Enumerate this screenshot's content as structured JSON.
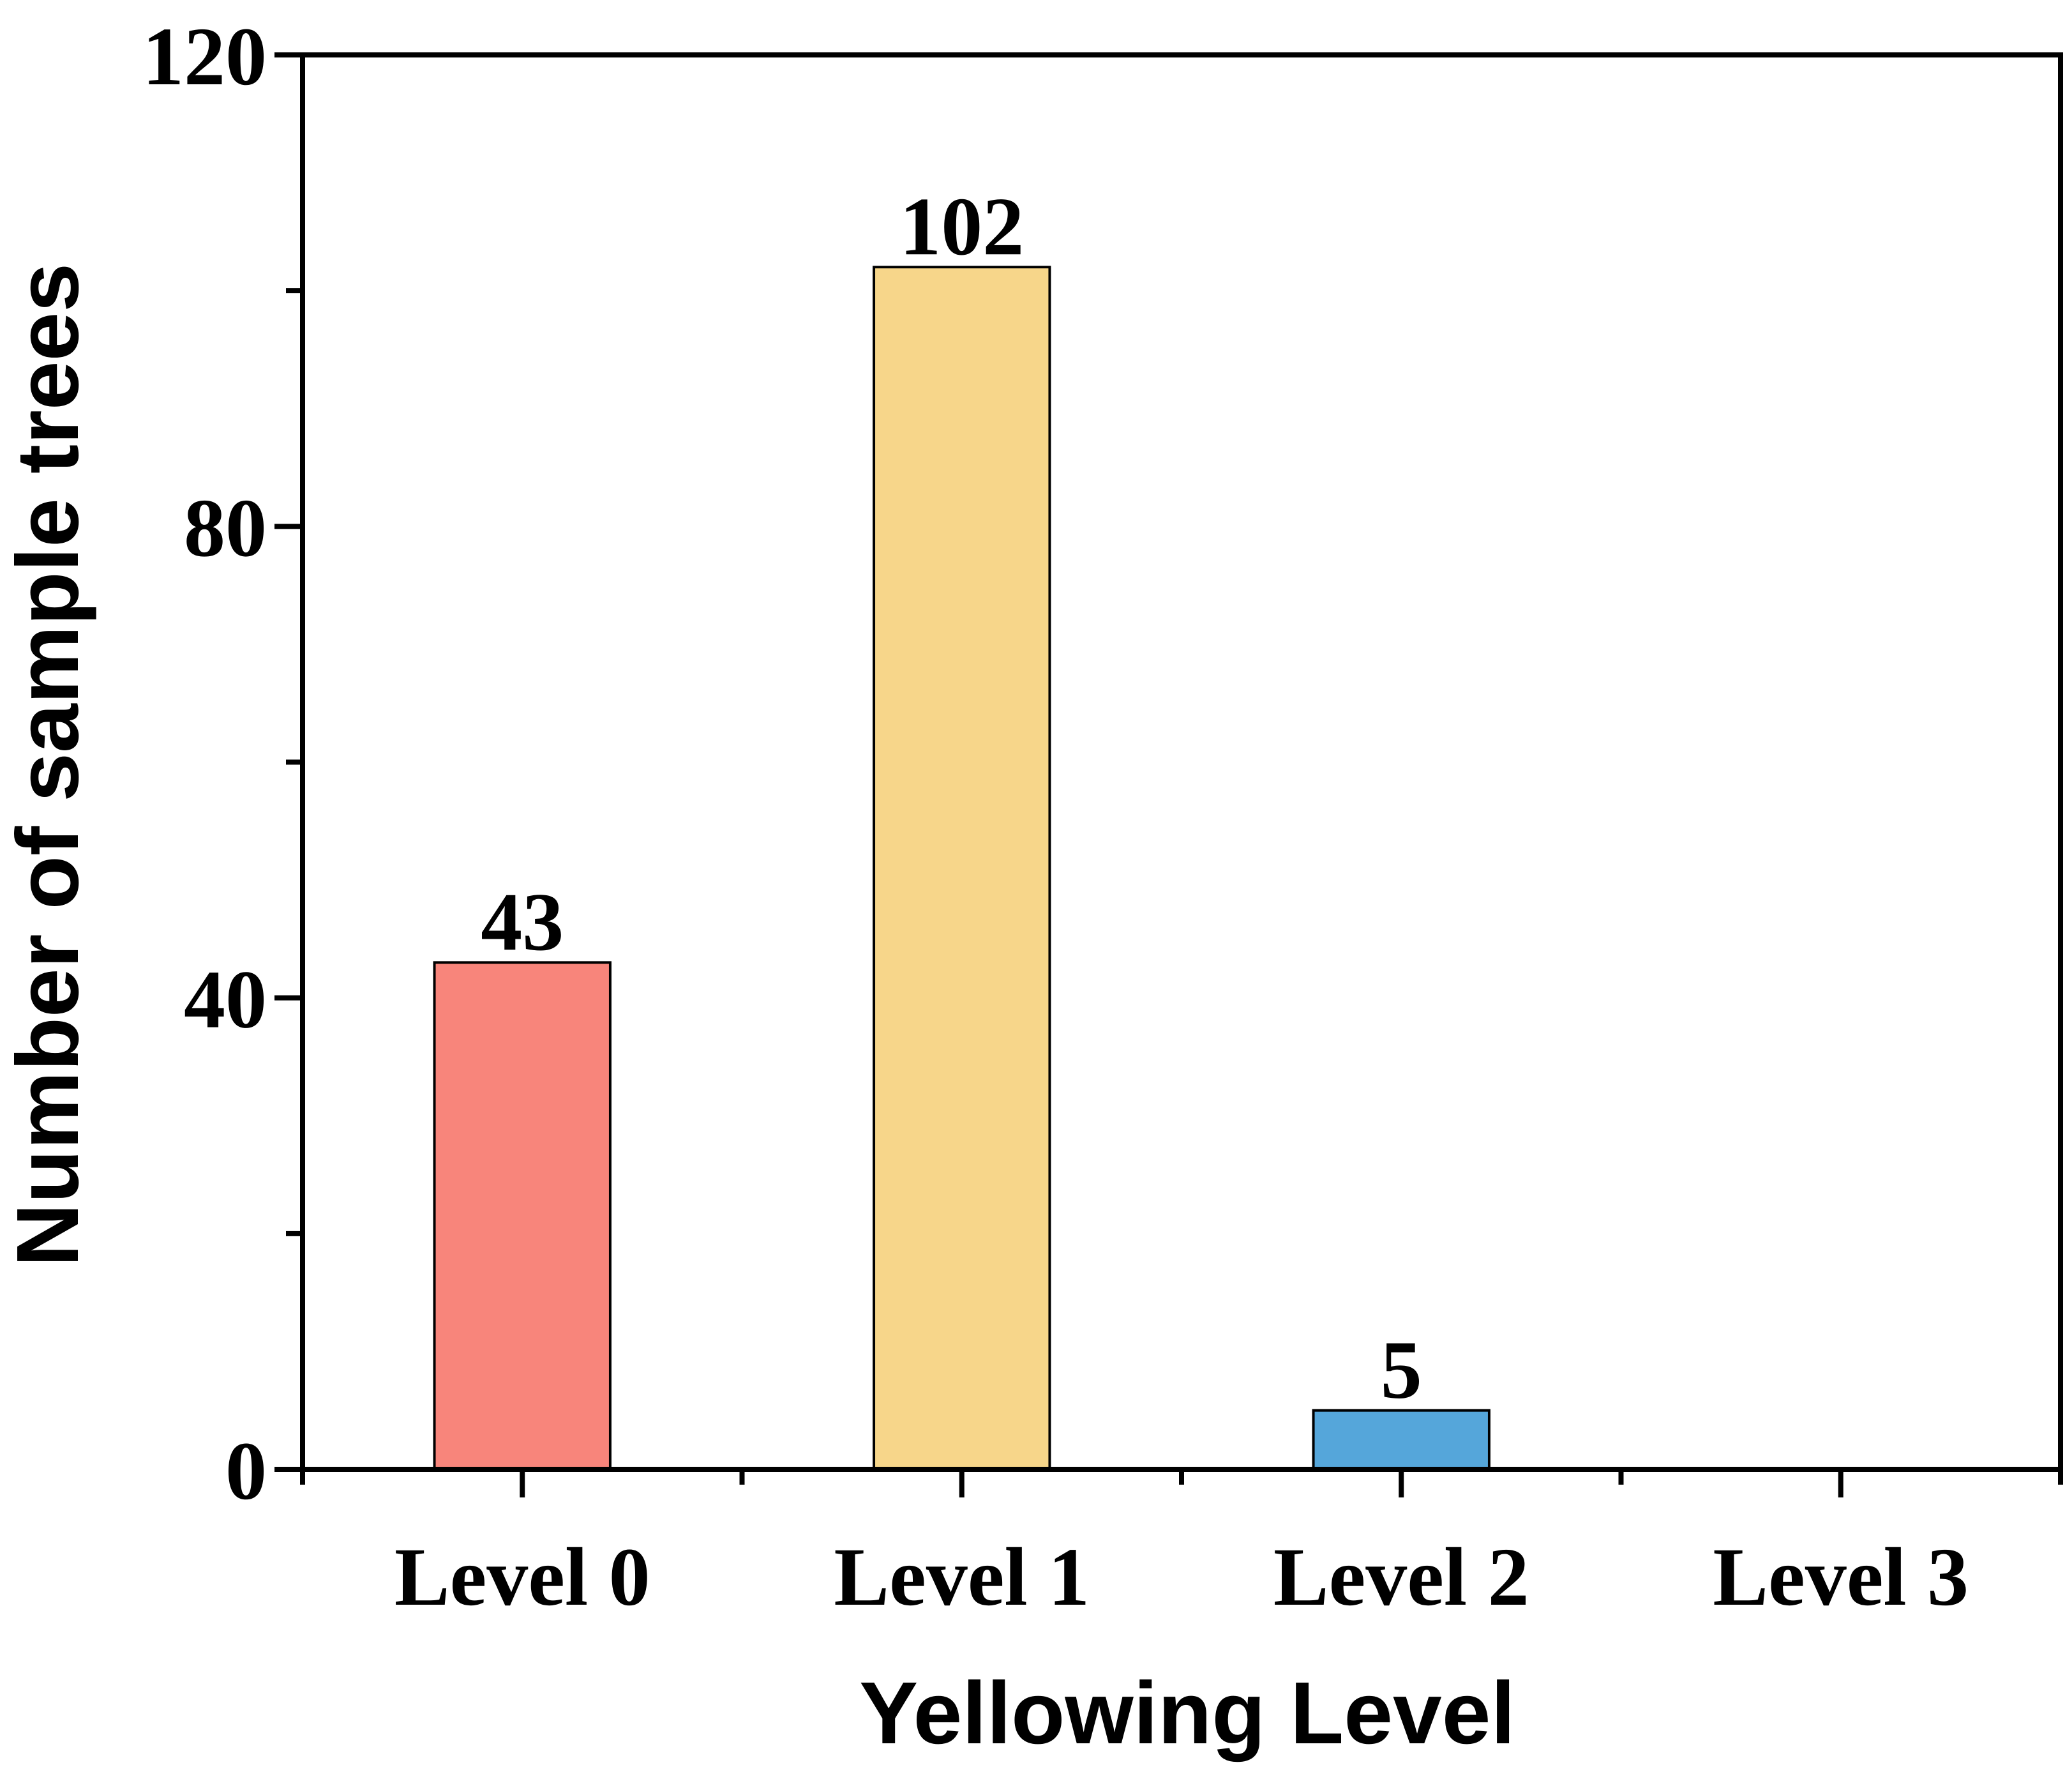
{
  "chart_data": {
    "type": "bar",
    "categories": [
      "Level 0",
      "Level 1",
      "Level 2",
      "Level 3"
    ],
    "values": [
      43,
      102,
      5,
      0
    ],
    "data_labels": [
      "43",
      "102",
      "5",
      ""
    ],
    "xlabel": "Yellowing Level",
    "ylabel": "Number of sample trees",
    "ylim": [
      0,
      120
    ],
    "y_major_ticks": [
      0,
      40,
      80,
      120
    ],
    "y_minor_ticks": [
      20,
      60,
      100
    ],
    "y_tick_labels": [
      "0",
      "40",
      "80",
      "120"
    ],
    "grid": false,
    "legend": "none",
    "colors": [
      "#f8857b",
      "#f7d68a",
      "#55a6da",
      "#ffffff"
    ],
    "bar_edge_color": "#000000"
  }
}
